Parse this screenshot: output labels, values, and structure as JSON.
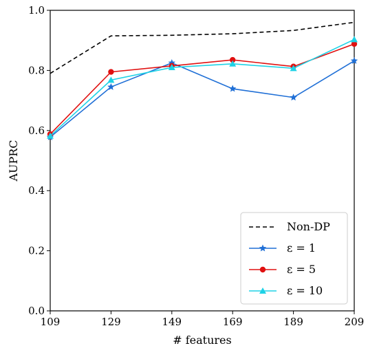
{
  "chart_data": {
    "type": "line",
    "xlabel": "# features",
    "ylabel": "AUPRC",
    "x": [
      109,
      129,
      149,
      169,
      189,
      209
    ],
    "xlim": [
      109,
      209
    ],
    "ylim": [
      0.0,
      1.0
    ],
    "xticks": [
      "109",
      "129",
      "149",
      "169",
      "189",
      "209"
    ],
    "yticks": [
      "0.0",
      "0.2",
      "0.4",
      "0.6",
      "0.8",
      "1.0"
    ],
    "grid": false,
    "legend_position": "lower-right",
    "series": [
      {
        "name": "Non-DP",
        "values": [
          0.79,
          0.915,
          0.917,
          0.922,
          0.933,
          0.96
        ],
        "color": "#000000",
        "style": "dashed",
        "marker": "none"
      },
      {
        "name": "ε = 1",
        "values": [
          0.578,
          0.745,
          0.825,
          0.739,
          0.71,
          0.832
        ],
        "color": "#1f6fd6",
        "style": "solid",
        "marker": "star"
      },
      {
        "name": "ε = 5",
        "values": [
          0.588,
          0.795,
          0.815,
          0.835,
          0.813,
          0.888
        ],
        "color": "#e01010",
        "style": "solid",
        "marker": "circle"
      },
      {
        "name": "ε = 10",
        "values": [
          0.582,
          0.768,
          0.81,
          0.822,
          0.807,
          0.903
        ],
        "color": "#1ed2e6",
        "style": "solid",
        "marker": "triangle"
      }
    ]
  }
}
